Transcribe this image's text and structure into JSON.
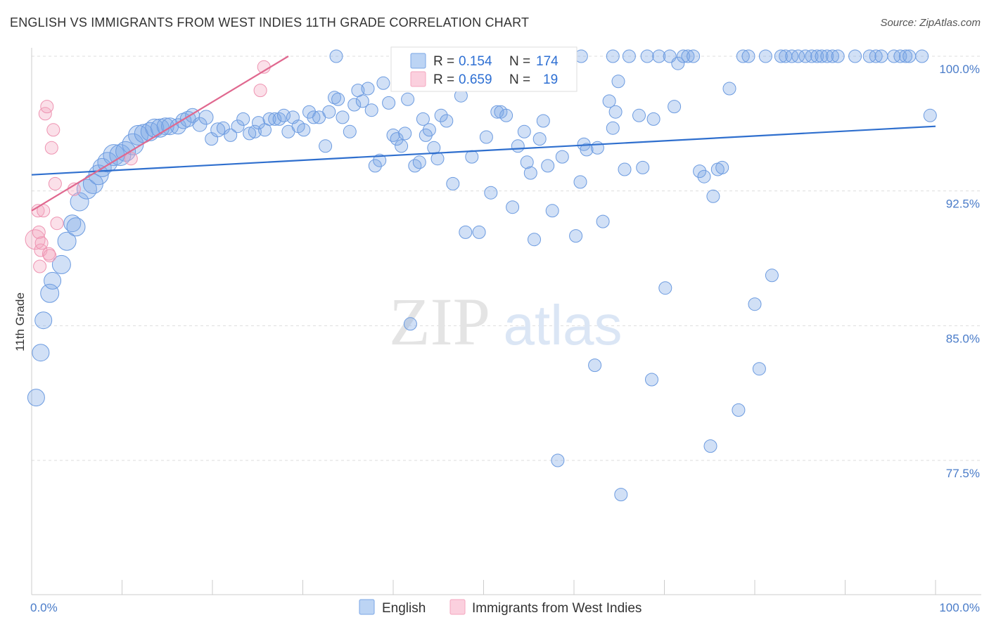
{
  "title": "ENGLISH VS IMMIGRANTS FROM WEST INDIES 11TH GRADE CORRELATION CHART",
  "source": "Source: ZipAtlas.com",
  "watermark": {
    "zip": "ZIP",
    "atlas": "atlas"
  },
  "colors": {
    "english": "#7aa6e6",
    "english_line": "#2f6fce",
    "west_indies": "#f4a6bf",
    "west_indies_line": "#e0688f",
    "axis_text": "#4a7cc9"
  },
  "chart_data": {
    "type": "scatter",
    "xlabel": "",
    "ylabel": "11th Grade",
    "xlim": [
      0,
      100
    ],
    "ylim": [
      70.0,
      101.0
    ],
    "x_tick_labels": [
      {
        "value": 0,
        "label": "0.0%"
      },
      {
        "value": 100,
        "label": "100.0%"
      }
    ],
    "y_ticks": [
      {
        "value": 100.0,
        "label": "100.0%"
      },
      {
        "value": 92.5,
        "label": "92.5%"
      },
      {
        "value": 85.0,
        "label": "85.0%"
      },
      {
        "value": 77.5,
        "label": "77.5%"
      }
    ],
    "legend_position": "bottom",
    "stats": [
      {
        "r_label": "R =",
        "r": "0.154",
        "n_label": "N =",
        "n": "174"
      },
      {
        "r_label": "R =",
        "r": "0.659",
        "n_label": "N =",
        "n": "19"
      }
    ],
    "series": [
      {
        "name": "English",
        "color": "#7aa6e6",
        "trend": {
          "x": [
            0,
            100
          ],
          "y": [
            93.4,
            96.1
          ]
        },
        "points": [
          [
            0.5,
            81.0,
            12
          ],
          [
            1.0,
            83.5,
            12
          ],
          [
            1.3,
            85.3,
            12
          ],
          [
            2.0,
            86.8,
            13
          ],
          [
            2.3,
            87.5,
            12
          ],
          [
            3.3,
            88.4,
            13
          ],
          [
            3.9,
            89.7,
            13
          ],
          [
            4.5,
            90.7,
            12
          ],
          [
            4.9,
            90.5,
            13
          ],
          [
            5.3,
            91.9,
            13
          ],
          [
            6.1,
            92.6,
            14
          ],
          [
            6.8,
            92.9,
            14
          ],
          [
            7.4,
            93.4,
            14
          ],
          [
            7.8,
            93.8,
            13
          ],
          [
            8.4,
            94.1,
            14
          ],
          [
            9.1,
            94.5,
            15
          ],
          [
            9.8,
            94.5,
            15
          ],
          [
            10.4,
            94.7,
            14
          ],
          [
            11.2,
            95.1,
            15
          ],
          [
            11.8,
            95.6,
            14
          ],
          [
            12.4,
            95.7,
            13
          ],
          [
            13.1,
            95.8,
            13
          ],
          [
            13.6,
            96.0,
            13
          ],
          [
            14.2,
            96.0,
            13
          ],
          [
            14.8,
            96.1,
            12
          ],
          [
            15.3,
            96.1,
            12
          ],
          [
            16.2,
            96.1,
            11
          ],
          [
            16.8,
            96.4,
            11
          ],
          [
            17.3,
            96.5,
            11
          ],
          [
            17.8,
            96.7,
            10
          ],
          [
            18.6,
            96.2,
            10
          ],
          [
            19.3,
            96.6,
            10
          ],
          [
            19.9,
            95.4,
            9
          ],
          [
            20.6,
            95.9,
            10
          ],
          [
            21.2,
            96.0,
            9
          ],
          [
            22.0,
            95.6,
            9
          ],
          [
            22.8,
            96.1,
            9
          ],
          [
            23.4,
            96.5,
            9
          ],
          [
            24.1,
            95.7,
            9
          ],
          [
            24.7,
            95.8,
            9
          ],
          [
            25.1,
            96.3,
            9
          ],
          [
            25.8,
            95.9,
            9
          ],
          [
            26.3,
            96.5,
            9
          ],
          [
            26.9,
            96.5,
            9
          ],
          [
            27.4,
            96.5,
            9
          ],
          [
            27.9,
            96.7,
            9
          ],
          [
            28.4,
            95.8,
            9
          ],
          [
            28.9,
            96.6,
            9
          ],
          [
            29.5,
            96.1,
            9
          ],
          [
            30.1,
            95.9,
            9
          ],
          [
            30.7,
            96.9,
            9
          ],
          [
            31.2,
            96.6,
            9
          ],
          [
            31.8,
            96.6,
            9
          ],
          [
            32.5,
            95.0,
            9
          ],
          [
            32.9,
            96.9,
            9
          ],
          [
            33.5,
            97.7,
            9
          ],
          [
            33.9,
            97.6,
            9
          ],
          [
            34.4,
            96.6,
            9
          ],
          [
            35.2,
            95.8,
            9
          ],
          [
            35.7,
            97.3,
            9
          ],
          [
            36.1,
            98.1,
            9
          ],
          [
            36.6,
            97.5,
            9
          ],
          [
            37.2,
            98.2,
            9
          ],
          [
            37.6,
            97.0,
            9
          ],
          [
            38.0,
            93.9,
            9
          ],
          [
            38.5,
            94.2,
            9
          ],
          [
            38.9,
            98.5,
            9
          ],
          [
            39.5,
            97.4,
            9
          ],
          [
            40.0,
            95.6,
            9
          ],
          [
            40.4,
            95.4,
            9
          ],
          [
            40.9,
            95.0,
            9
          ],
          [
            41.3,
            95.7,
            9
          ],
          [
            41.6,
            97.6,
            9
          ],
          [
            41.9,
            85.1,
            9
          ],
          [
            42.4,
            93.9,
            9
          ],
          [
            42.9,
            94.1,
            9
          ],
          [
            43.3,
            96.5,
            9
          ],
          [
            43.6,
            95.6,
            9
          ],
          [
            44.0,
            95.9,
            9
          ],
          [
            44.5,
            94.9,
            9
          ],
          [
            44.9,
            94.3,
            9
          ],
          [
            45.3,
            96.7,
            9
          ],
          [
            45.9,
            96.4,
            9
          ],
          [
            46.6,
            92.9,
            9
          ],
          [
            47.5,
            97.8,
            9
          ],
          [
            48.0,
            90.2,
            9
          ],
          [
            48.5,
            99.6,
            9
          ],
          [
            48.7,
            94.4,
            9
          ],
          [
            49.5,
            90.2,
            9
          ],
          [
            50.3,
            95.5,
            9
          ],
          [
            50.8,
            92.4,
            9
          ],
          [
            51.5,
            96.9,
            9
          ],
          [
            51.9,
            96.9,
            9
          ],
          [
            52.5,
            96.7,
            9
          ],
          [
            53.2,
            91.6,
            9
          ],
          [
            53.8,
            95.0,
            9
          ],
          [
            54.5,
            95.8,
            9
          ],
          [
            54.8,
            94.1,
            9
          ],
          [
            55.2,
            93.5,
            9
          ],
          [
            55.6,
            89.8,
            9
          ],
          [
            56.2,
            95.4,
            9
          ],
          [
            56.6,
            96.4,
            9
          ],
          [
            57.1,
            93.9,
            9
          ],
          [
            57.6,
            91.4,
            9
          ],
          [
            58.2,
            77.5,
            9
          ],
          [
            58.7,
            94.4,
            9
          ],
          [
            59.6,
            99.6,
            9
          ],
          [
            60.2,
            90.0,
            9
          ],
          [
            60.7,
            93.0,
            9
          ],
          [
            61.1,
            95.1,
            9
          ],
          [
            61.4,
            94.8,
            9
          ],
          [
            62.3,
            82.8,
            9
          ],
          [
            62.6,
            94.9,
            9
          ],
          [
            63.2,
            90.8,
            9
          ],
          [
            63.9,
            97.5,
            9
          ],
          [
            64.3,
            96.0,
            9
          ],
          [
            64.6,
            96.9,
            9
          ],
          [
            64.9,
            98.6,
            9
          ],
          [
            65.2,
            75.6,
            9
          ],
          [
            65.6,
            93.7,
            9
          ],
          [
            66.1,
            100.0,
            9
          ],
          [
            67.2,
            96.7,
            9
          ],
          [
            67.6,
            93.8,
            9
          ],
          [
            68.1,
            100.0,
            9
          ],
          [
            68.6,
            82.0,
            9
          ],
          [
            68.8,
            96.5,
            9
          ],
          [
            69.4,
            100.0,
            9
          ],
          [
            70.1,
            87.1,
            9
          ],
          [
            70.6,
            100.0,
            9
          ],
          [
            71.1,
            97.2,
            9
          ],
          [
            71.5,
            99.6,
            9
          ],
          [
            72.1,
            100.0,
            9
          ],
          [
            72.6,
            100.0,
            9
          ],
          [
            73.2,
            100.0,
            9
          ],
          [
            73.9,
            93.6,
            9
          ],
          [
            74.4,
            93.3,
            9
          ],
          [
            75.1,
            78.3,
            9
          ],
          [
            75.4,
            92.2,
            9
          ],
          [
            75.9,
            93.7,
            9
          ],
          [
            76.4,
            93.8,
            9
          ],
          [
            77.2,
            98.2,
            9
          ],
          [
            78.2,
            80.3,
            9
          ],
          [
            78.7,
            100.0,
            9
          ],
          [
            79.3,
            100.0,
            9
          ],
          [
            80.0,
            86.2,
            9
          ],
          [
            80.5,
            82.6,
            9
          ],
          [
            81.2,
            100.0,
            9
          ],
          [
            81.9,
            87.8,
            9
          ],
          [
            82.9,
            100.0,
            9
          ],
          [
            83.4,
            100.0,
            9
          ],
          [
            84.1,
            100.0,
            9
          ],
          [
            85.6,
            100.0,
            9
          ],
          [
            86.3,
            100.0,
            9
          ],
          [
            86.9,
            100.0,
            9
          ],
          [
            87.4,
            100.0,
            9
          ],
          [
            88.0,
            100.0,
            9
          ],
          [
            88.6,
            100.0,
            9
          ],
          [
            89.2,
            100.0,
            9
          ],
          [
            91.1,
            100.0,
            9
          ],
          [
            92.7,
            100.0,
            9
          ],
          [
            93.4,
            100.0,
            9
          ],
          [
            94.0,
            100.0,
            9
          ],
          [
            95.4,
            100.0,
            9
          ],
          [
            96.1,
            100.0,
            9
          ],
          [
            96.7,
            100.0,
            9
          ],
          [
            98.5,
            100.0,
            9
          ],
          [
            99.4,
            96.7,
            9
          ],
          [
            97.1,
            100.0,
            9
          ],
          [
            84.8,
            100.0,
            9
          ],
          [
            64.3,
            100.0,
            9
          ],
          [
            60.8,
            100.0,
            9
          ],
          [
            45.1,
            100.0,
            9
          ],
          [
            52.3,
            100.0,
            9
          ],
          [
            33.7,
            100.0,
            9
          ]
        ]
      },
      {
        "name": "Immigrants from West Indies",
        "color": "#f4a6bf",
        "trend": {
          "x": [
            0,
            28.4
          ],
          "y": [
            91.4,
            100.0
          ]
        },
        "points": [
          [
            0.4,
            89.8,
            14
          ],
          [
            0.7,
            91.4,
            9
          ],
          [
            0.8,
            90.2,
            9
          ],
          [
            0.9,
            88.3,
            9
          ],
          [
            1.0,
            89.2,
            9
          ],
          [
            1.1,
            89.6,
            9
          ],
          [
            1.3,
            91.4,
            9
          ],
          [
            1.5,
            96.8,
            9
          ],
          [
            1.7,
            97.2,
            9
          ],
          [
            1.9,
            89.0,
            9
          ],
          [
            2.0,
            88.9,
            9
          ],
          [
            2.2,
            94.9,
            9
          ],
          [
            2.4,
            95.9,
            9
          ],
          [
            2.6,
            92.9,
            9
          ],
          [
            2.8,
            90.7,
            9
          ],
          [
            4.7,
            92.6,
            9
          ],
          [
            11.0,
            94.3,
            9
          ],
          [
            25.3,
            98.1,
            9
          ],
          [
            25.7,
            99.4,
            9
          ]
        ]
      }
    ]
  }
}
